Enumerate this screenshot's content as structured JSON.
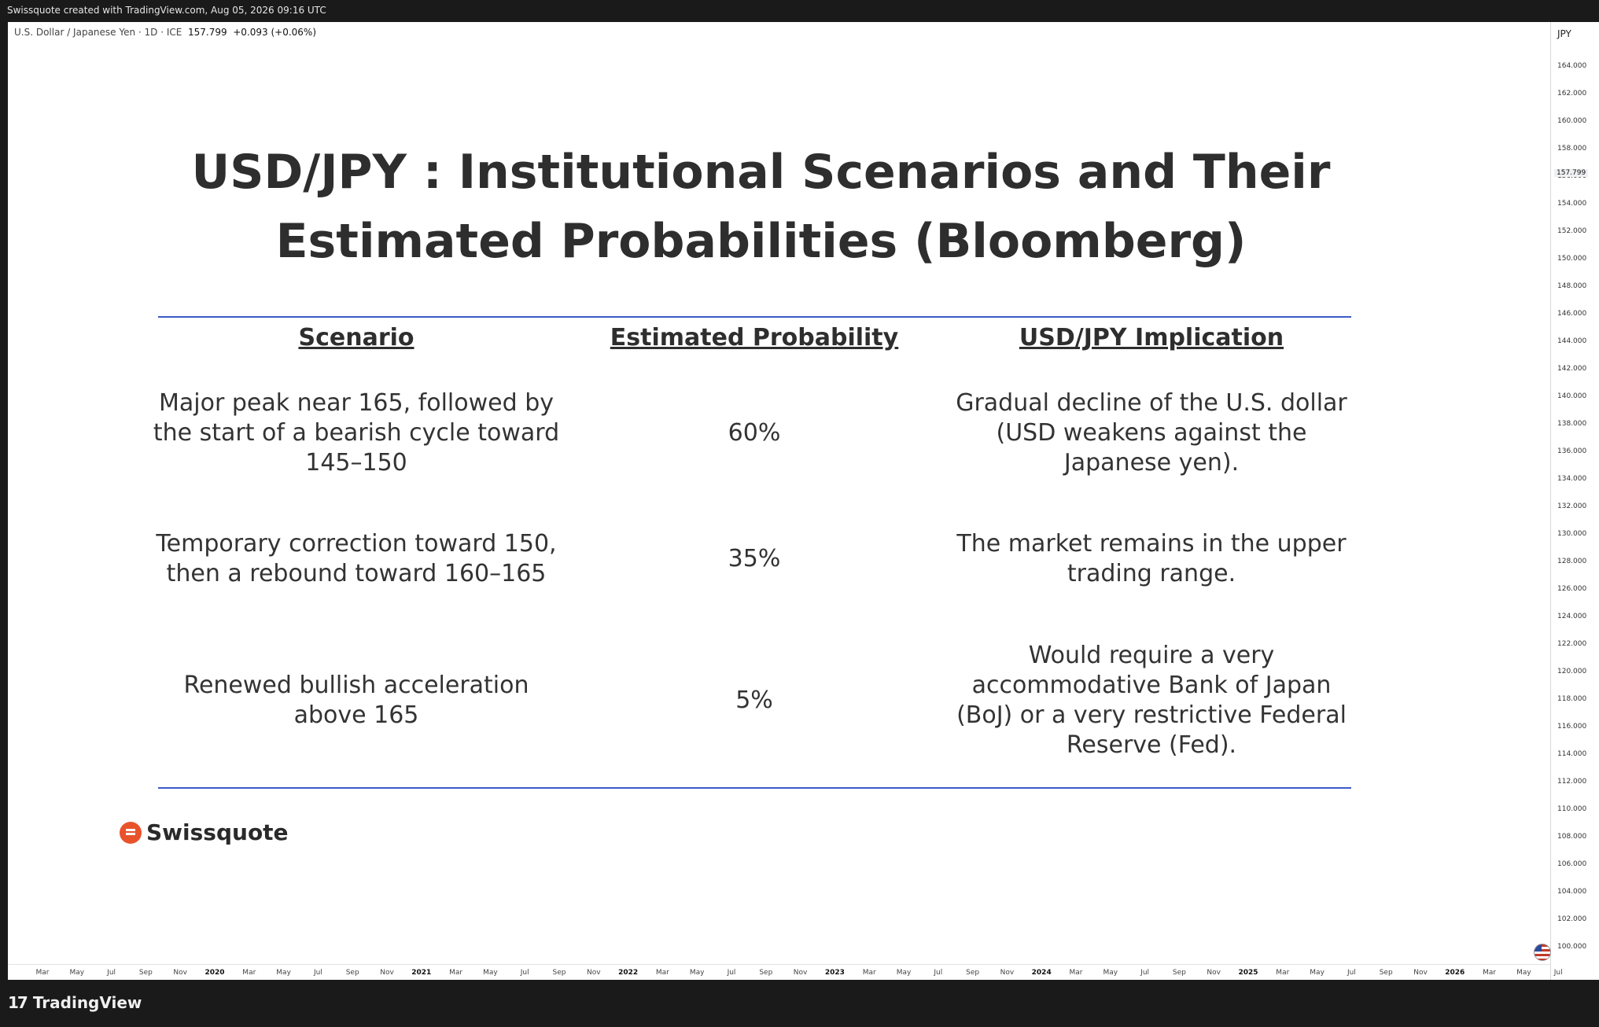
{
  "header": {
    "credit": "Swissquote created with TradingView.com, Aug 05, 2026 09:16 UTC"
  },
  "legend": {
    "symbol": "U.S. Dollar / Japanese Yen · 1D · ICE",
    "price": "157.799",
    "change": "+0.093 (+0.06%)"
  },
  "yaxis": {
    "currency": "JPY",
    "last_price": "157.799",
    "ticks": [
      "164.000",
      "162.000",
      "160.000",
      "158.000",
      "156.000",
      "154.000",
      "152.000",
      "150.000",
      "148.000",
      "146.000",
      "144.000",
      "142.000",
      "140.000",
      "138.000",
      "136.000",
      "134.000",
      "132.000",
      "130.000",
      "128.000",
      "126.000",
      "124.000",
      "122.000",
      "120.000",
      "118.000",
      "116.000",
      "114.000",
      "112.000",
      "110.000",
      "108.000",
      "106.000",
      "104.000",
      "102.000",
      "100.000"
    ]
  },
  "xaxis": {
    "ticks": [
      "Mar",
      "May",
      "Jul",
      "Sep",
      "Nov",
      "2020",
      "Mar",
      "May",
      "Jul",
      "Sep",
      "Nov",
      "2021",
      "Mar",
      "May",
      "Jul",
      "Sep",
      "Nov",
      "2022",
      "Mar",
      "May",
      "Jul",
      "Sep",
      "Nov",
      "2023",
      "Mar",
      "May",
      "Jul",
      "Sep",
      "Nov",
      "2024",
      "Mar",
      "May",
      "Jul",
      "Sep",
      "Nov",
      "2025",
      "Mar",
      "May",
      "Jul",
      "Sep",
      "Nov",
      "2026",
      "Mar",
      "May",
      "Jul"
    ]
  },
  "slide": {
    "title": "USD/JPY : Institutional Scenarios and Their Estimated Probabilities (Bloomberg)",
    "headers": {
      "scenario": "Scenario",
      "probability": "Estimated Probability",
      "implication": "USD/JPY Implication"
    },
    "rows": [
      {
        "scenario": "Major peak near 165, followed by the start of a bearish cycle toward 145–150",
        "probability": "60%",
        "implication": "Gradual decline of the U.S. dollar (USD weakens against the Japanese yen)."
      },
      {
        "scenario": "Temporary correction toward 150, then a rebound toward 160–165",
        "probability": "35%",
        "implication": "The market remains in the upper trading range."
      },
      {
        "scenario": "Renewed bullish acceleration above 165",
        "probability": "5%",
        "implication": "Would require a very accommodative Bank of Japan (BoJ) or a very restrictive Federal Reserve (Fed)."
      }
    ],
    "brand": "Swissquote"
  },
  "footer": {
    "logo_mark": "17",
    "logo_word": "TradingView"
  },
  "colors": {
    "rule": "#3a5bc9",
    "brand": "#e8532b"
  }
}
